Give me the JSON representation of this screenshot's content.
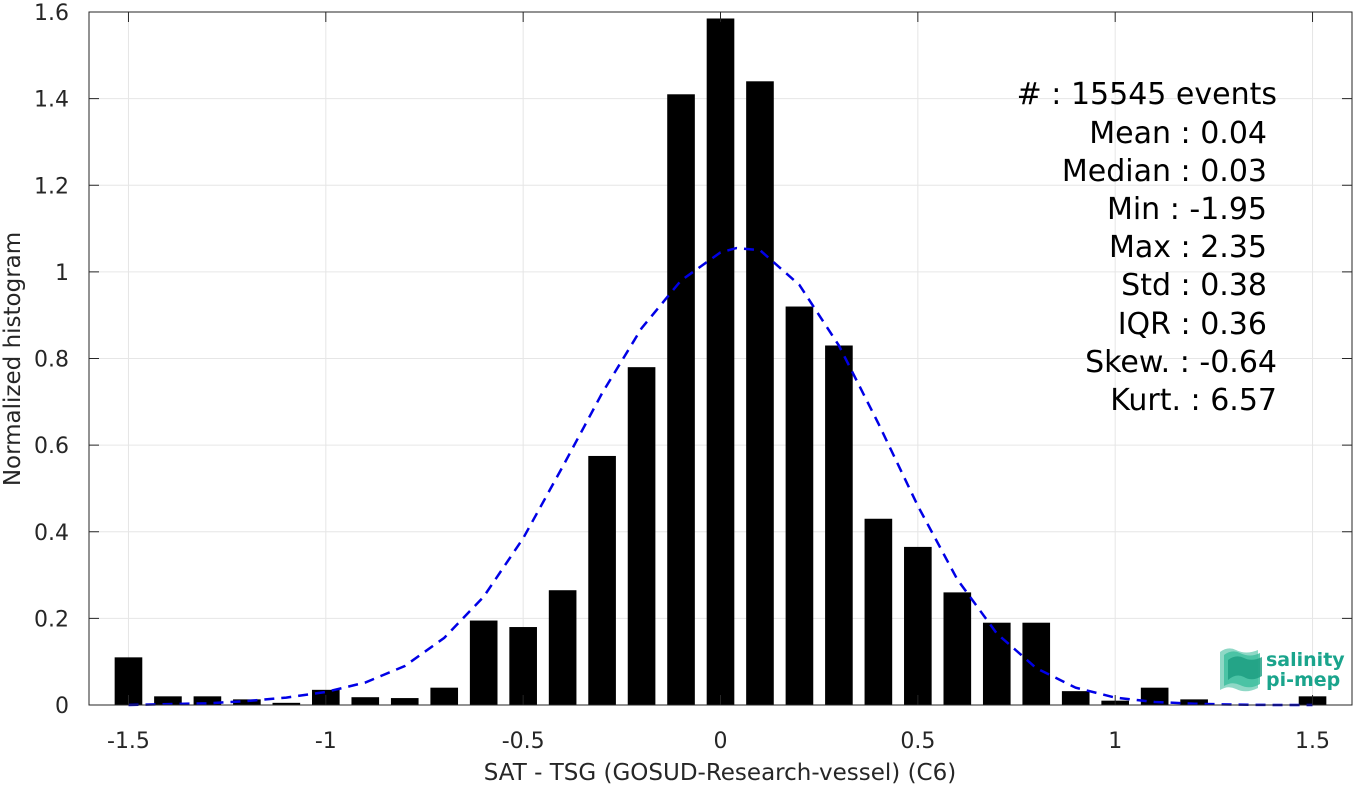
{
  "chart_data": {
    "type": "bar",
    "xlabel": "SAT - TSG (GOSUD-Research-vessel) (C6)",
    "ylabel": "Normalized histogram",
    "xlim": [
      -1.6,
      1.6
    ],
    "ylim": [
      0,
      1.6
    ],
    "grid": true,
    "x_ticks": [
      -1.5,
      -1,
      -0.5,
      0,
      0.5,
      1,
      1.5
    ],
    "x_tick_labels": [
      "-1.5",
      "-1",
      "-0.5",
      "0",
      "0.5",
      "1",
      "1.5"
    ],
    "y_ticks": [
      0,
      0.2,
      0.4,
      0.6,
      0.8,
      1,
      1.2,
      1.4,
      1.6
    ],
    "y_tick_labels": [
      "0",
      "0.2",
      "0.4",
      "0.6",
      "0.8",
      "1",
      "1.2",
      "1.4",
      "1.6"
    ],
    "bar_color": "#000000",
    "bar_width": 0.07,
    "bars": {
      "x": [
        -1.5,
        -1.4,
        -1.3,
        -1.2,
        -1.1,
        -1.0,
        -0.9,
        -0.8,
        -0.7,
        -0.6,
        -0.5,
        -0.4,
        -0.3,
        -0.2,
        -0.1,
        0.0,
        0.1,
        0.2,
        0.3,
        0.4,
        0.5,
        0.6,
        0.7,
        0.8,
        0.9,
        1.0,
        1.1,
        1.2,
        1.3,
        1.4,
        1.5
      ],
      "values": [
        0.11,
        0.02,
        0.02,
        0.013,
        0.005,
        0.035,
        0.018,
        0.016,
        0.04,
        0.195,
        0.18,
        0.265,
        0.575,
        0.78,
        1.41,
        1.585,
        1.44,
        0.92,
        0.83,
        0.43,
        0.365,
        0.26,
        0.19,
        0.19,
        0.032,
        0.01,
        0.04,
        0.013,
        0.0,
        0.0,
        0.02
      ]
    },
    "fit_curve": {
      "style": "dashed",
      "color": "#0000e6",
      "x": [
        -1.5,
        -1.4,
        -1.3,
        -1.2,
        -1.1,
        -1.0,
        -0.9,
        -0.8,
        -0.7,
        -0.6,
        -0.5,
        -0.4,
        -0.3,
        -0.2,
        -0.1,
        0.0,
        0.04,
        0.1,
        0.2,
        0.3,
        0.4,
        0.5,
        0.6,
        0.7,
        0.8,
        0.9,
        1.0,
        1.1,
        1.2,
        1.3,
        1.4,
        1.5
      ],
      "y": [
        0.0,
        0.002,
        0.004,
        0.009,
        0.017,
        0.03,
        0.052,
        0.09,
        0.155,
        0.25,
        0.385,
        0.55,
        0.72,
        0.87,
        0.98,
        1.045,
        1.055,
        1.05,
        0.97,
        0.83,
        0.65,
        0.46,
        0.29,
        0.165,
        0.085,
        0.04,
        0.017,
        0.007,
        0.003,
        0.001,
        0.0,
        0.0
      ]
    }
  },
  "stats": [
    {
      "label": "#  : 15545 events"
    },
    {
      "label": "Mean : 0.04"
    },
    {
      "label": "Median : 0.03"
    },
    {
      "label": "Min : -1.95"
    },
    {
      "label": "Max : 2.35"
    },
    {
      "label": "Std : 0.38"
    },
    {
      "label": "IQR : 0.36"
    },
    {
      "label": "Skew. : -0.64"
    },
    {
      "label": "Kurt. : 6.57"
    }
  ],
  "logo": {
    "line1": "salinity",
    "line2": "pi-mep",
    "color": "#1aa48c",
    "icon": "salinity-waves-icon"
  }
}
